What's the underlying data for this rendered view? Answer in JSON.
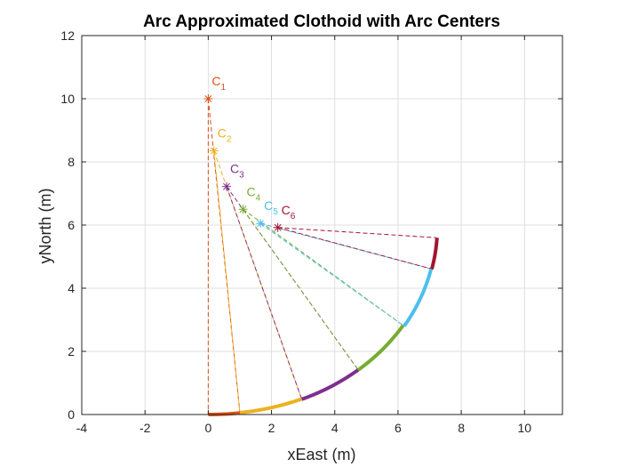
{
  "chart_data": {
    "type": "line",
    "title": "Arc Approximated Clothoid with Arc Centers",
    "xlabel": "xEast (m)",
    "ylabel": "yNorth (m)",
    "xlim": [
      -4,
      11.2
    ],
    "ylim": [
      0,
      12
    ],
    "xticks": [
      -4,
      -2,
      0,
      2,
      4,
      6,
      8,
      10
    ],
    "yticks": [
      0,
      2,
      4,
      6,
      8,
      10,
      12
    ],
    "grid": true,
    "arcs": [
      {
        "center_label": "C",
        "center_index": "1",
        "color": "#D95319",
        "center": [
          0,
          10
        ],
        "start": [
          0,
          0
        ],
        "end": [
          1.0,
          0.05
        ]
      },
      {
        "center_label": "C",
        "center_index": "2",
        "color": "#EDB120",
        "center": [
          0.18,
          8.35
        ],
        "start": [
          1.0,
          0.05
        ],
        "end": [
          2.95,
          0.5
        ]
      },
      {
        "center_label": "C",
        "center_index": "3",
        "color": "#7E2F8E",
        "center": [
          0.58,
          7.22
        ],
        "start": [
          2.95,
          0.5
        ],
        "end": [
          4.75,
          1.4
        ]
      },
      {
        "center_label": "C",
        "center_index": "4",
        "color": "#77AC30",
        "center": [
          1.1,
          6.5
        ],
        "start": [
          4.75,
          1.4
        ],
        "end": [
          6.15,
          2.83
        ]
      },
      {
        "center_label": "C",
        "center_index": "5",
        "color": "#4DBEEE",
        "center": [
          1.65,
          6.05
        ],
        "start": [
          6.15,
          2.83
        ],
        "end": [
          7.1,
          4.6
        ]
      },
      {
        "center_label": "C",
        "center_index": "6",
        "color": "#A2142F",
        "center": [
          2.2,
          5.92
        ],
        "start": [
          7.1,
          4.6
        ],
        "end": [
          7.2,
          5.6
        ]
      }
    ]
  }
}
